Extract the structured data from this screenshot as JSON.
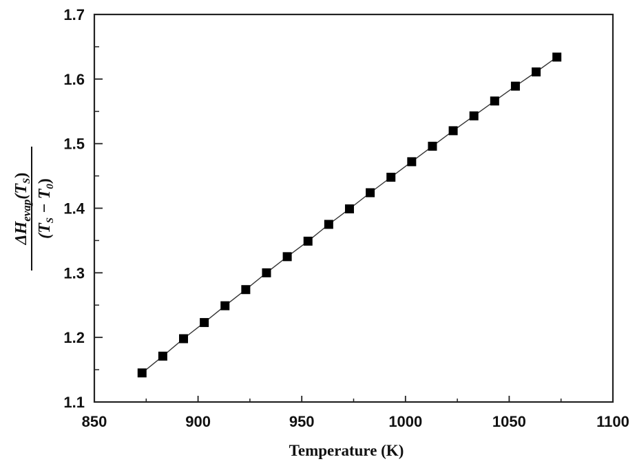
{
  "chart_data": {
    "type": "line",
    "title": "",
    "xlabel": "Temperature (K)",
    "ylabel": "ΔH_evap(T_S) / (T_S − T_0)",
    "ylabel_parts": {
      "numerator_main": "ΔH",
      "numerator_sub": "evap",
      "numerator_tail": "(T",
      "numerator_tail_sub": "S",
      "numerator_close": ")",
      "denominator_open": "(T",
      "denominator_sub1": "S",
      "denominator_mid": " − T",
      "denominator_sub2": "0",
      "denominator_close": ")"
    },
    "xlim": [
      850,
      1100
    ],
    "ylim": [
      1.1,
      1.7
    ],
    "x_ticks": [
      850,
      900,
      950,
      1000,
      1050,
      1100
    ],
    "x_tick_labels": [
      "850",
      "900",
      "950",
      "1000",
      "1050",
      "1100"
    ],
    "y_ticks": [
      1.1,
      1.2,
      1.3,
      1.4,
      1.5,
      1.6,
      1.7
    ],
    "y_tick_labels": [
      "1.1",
      "1.2",
      "1.3",
      "1.4",
      "1.5",
      "1.6",
      "1.7"
    ],
    "grid": false,
    "legend": null,
    "series": [
      {
        "name": "ΔH_evap(T_S)/(T_S − T_0)",
        "marker": "square",
        "color": "#000000",
        "x": [
          873,
          883,
          893,
          903,
          913,
          923,
          933,
          943,
          953,
          963,
          973,
          983,
          993,
          1003,
          1013,
          1023,
          1033,
          1043,
          1053,
          1063,
          1073
        ],
        "values": [
          1.145,
          1.171,
          1.198,
          1.223,
          1.249,
          1.274,
          1.3,
          1.325,
          1.349,
          1.375,
          1.399,
          1.424,
          1.448,
          1.472,
          1.496,
          1.52,
          1.543,
          1.566,
          1.589,
          1.611,
          1.634
        ]
      }
    ]
  },
  "style": {
    "marker_color": "#000000",
    "line_color": "#333333",
    "axis_color": "#222222"
  }
}
